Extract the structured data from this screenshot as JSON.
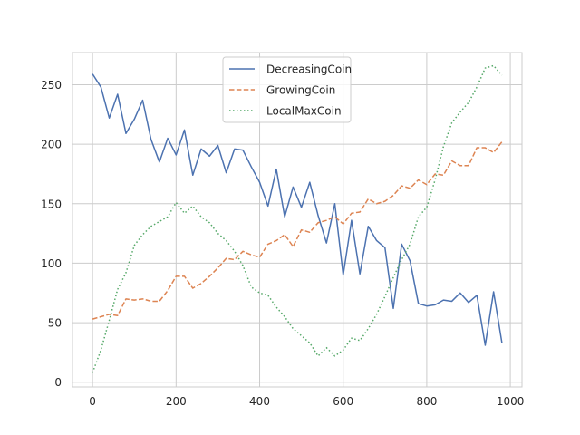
{
  "chart_data": {
    "type": "line",
    "title": "",
    "xlabel": "",
    "ylabel": "",
    "xlim": [
      -48,
      1028
    ],
    "ylim": [
      -4,
      277
    ],
    "xticks": [
      0,
      200,
      400,
      600,
      800,
      1000
    ],
    "yticks": [
      0,
      50,
      100,
      150,
      200,
      250
    ],
    "grid": true,
    "legend_position": "top-center",
    "x": [
      0,
      20,
      40,
      60,
      80,
      100,
      120,
      140,
      160,
      180,
      200,
      220,
      240,
      260,
      280,
      300,
      320,
      340,
      360,
      380,
      400,
      420,
      440,
      460,
      480,
      500,
      520,
      540,
      560,
      580,
      600,
      620,
      640,
      660,
      680,
      700,
      720,
      740,
      760,
      780,
      800,
      820,
      840,
      860,
      880,
      900,
      920,
      940,
      960,
      980
    ],
    "series": [
      {
        "name": "DecreasingCoin",
        "color": "#4c72b0",
        "dash": "solid",
        "values": [
          259,
          248,
          222,
          242,
          209,
          221,
          237,
          204,
          185,
          205,
          191,
          212,
          174,
          196,
          190,
          199,
          176,
          196,
          195,
          181,
          168,
          148,
          179,
          139,
          164,
          147,
          168,
          140,
          117,
          150,
          90,
          136,
          91,
          131,
          119,
          113,
          62,
          116,
          102,
          66,
          64,
          65,
          69,
          68,
          75,
          67,
          73,
          31,
          76,
          33
        ]
      },
      {
        "name": "GrowingCoin",
        "color": "#dd8452",
        "dash": "dashed",
        "values": [
          53,
          55,
          57,
          56,
          70,
          69,
          70,
          68,
          68,
          77,
          89,
          89,
          79,
          83,
          89,
          96,
          104,
          103,
          110,
          107,
          105,
          116,
          119,
          124,
          114,
          128,
          126,
          134,
          136,
          139,
          133,
          142,
          143,
          154,
          150,
          152,
          157,
          165,
          163,
          170,
          166,
          175,
          174,
          186,
          182,
          182,
          197,
          197,
          193,
          202
        ]
      },
      {
        "name": "LocalMaxCoin",
        "color": "#55a868",
        "dash": "dotted",
        "values": [
          8,
          27,
          52,
          78,
          92,
          115,
          124,
          131,
          135,
          139,
          151,
          142,
          148,
          139,
          134,
          125,
          119,
          110,
          98,
          80,
          75,
          73,
          63,
          55,
          45,
          39,
          33,
          22,
          29,
          22,
          27,
          37,
          35,
          45,
          57,
          72,
          88,
          103,
          116,
          139,
          147,
          170,
          198,
          218,
          227,
          235,
          248,
          264,
          266,
          258
        ]
      }
    ]
  }
}
